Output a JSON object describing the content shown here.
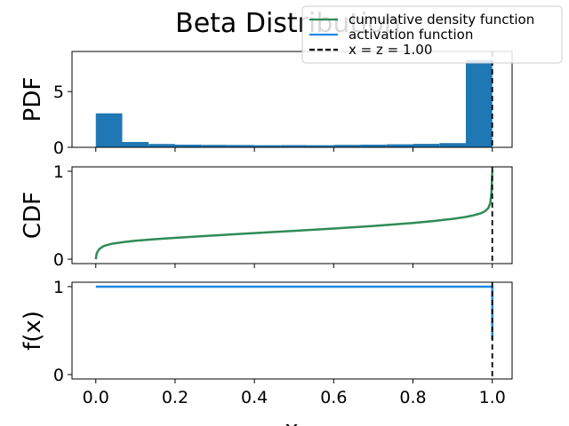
{
  "chart_data": {
    "type": "composite",
    "title": "Beta Distribution",
    "xlabel": "x",
    "x_ticks": [
      "0.0",
      "0.2",
      "0.4",
      "0.6",
      "0.8",
      "1.0"
    ],
    "xlim": [
      -0.06,
      1.05
    ],
    "legend": {
      "placement": "top-right",
      "entries": [
        {
          "label": "cumulative density function",
          "color": "#2e8b57",
          "style": "solid"
        },
        {
          "label": "activation function",
          "color": "#1e88e5",
          "style": "solid"
        },
        {
          "label": "x = z = 1.00",
          "color": "#000000",
          "style": "dashed"
        }
      ]
    },
    "panels": [
      {
        "type": "bar",
        "ylabel": "PDF",
        "ylim": [
          0,
          8.6
        ],
        "y_ticks": [
          {
            "value": 0,
            "label": "0"
          },
          {
            "value": 5,
            "label": "5"
          }
        ],
        "color": "#1f77b4",
        "bins": [
          {
            "x0": 0.0,
            "x1": 0.0667,
            "value": 3.05
          },
          {
            "x0": 0.0667,
            "x1": 0.1333,
            "value": 0.48
          },
          {
            "x0": 0.1333,
            "x1": 0.2,
            "value": 0.3
          },
          {
            "x0": 0.2,
            "x1": 0.2667,
            "value": 0.24
          },
          {
            "x0": 0.2667,
            "x1": 0.3333,
            "value": 0.22
          },
          {
            "x0": 0.3333,
            "x1": 0.4,
            "value": 0.21
          },
          {
            "x0": 0.4,
            "x1": 0.4667,
            "value": 0.19
          },
          {
            "x0": 0.4667,
            "x1": 0.5333,
            "value": 0.2
          },
          {
            "x0": 0.5333,
            "x1": 0.6,
            "value": 0.19
          },
          {
            "x0": 0.6,
            "x1": 0.6667,
            "value": 0.22
          },
          {
            "x0": 0.6667,
            "x1": 0.7333,
            "value": 0.24
          },
          {
            "x0": 0.7333,
            "x1": 0.8,
            "value": 0.27
          },
          {
            "x0": 0.8,
            "x1": 0.8667,
            "value": 0.31
          },
          {
            "x0": 0.8667,
            "x1": 0.9333,
            "value": 0.38
          },
          {
            "x0": 0.9333,
            "x1": 1.0,
            "value": 7.85
          }
        ]
      },
      {
        "type": "line",
        "ylabel": "CDF",
        "ylim": [
          -0.05,
          1.05
        ],
        "y_ticks": [
          {
            "value": 0,
            "label": "0"
          },
          {
            "value": 1,
            "label": "1"
          }
        ],
        "color": "#2e8b57",
        "x": [
          0.0,
          0.002,
          0.005,
          0.01,
          0.02,
          0.04,
          0.07,
          0.1,
          0.15,
          0.2,
          0.3,
          0.4,
          0.5,
          0.6,
          0.7,
          0.8,
          0.85,
          0.9,
          0.93,
          0.95,
          0.97,
          0.98,
          0.99,
          0.995,
          0.998,
          1.0
        ],
        "y": [
          0.0,
          0.06,
          0.09,
          0.12,
          0.15,
          0.175,
          0.195,
          0.21,
          0.228,
          0.243,
          0.27,
          0.297,
          0.322,
          0.348,
          0.378,
          0.412,
          0.433,
          0.458,
          0.478,
          0.496,
          0.52,
          0.54,
          0.58,
          0.64,
          0.76,
          1.0
        ]
      },
      {
        "type": "line",
        "ylabel": "f(x)",
        "ylim": [
          -0.05,
          1.05
        ],
        "y_ticks": [
          {
            "value": 0,
            "label": "0"
          },
          {
            "value": 1,
            "label": "1"
          }
        ],
        "color": "#1e88e5",
        "x": [
          0.0,
          1.0,
          1.0
        ],
        "y": [
          1.0,
          1.0,
          0.4
        ]
      }
    ],
    "vline": {
      "x": 1.0,
      "color": "#000000",
      "style": "dashed"
    }
  }
}
